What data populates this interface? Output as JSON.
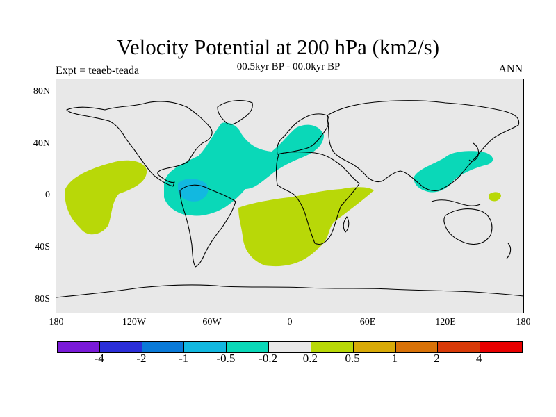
{
  "header": {
    "title": "Velocity Potential at 200 hPa (km2/s)",
    "subtitle": "00.5kyr BP - 00.0kyr BP",
    "expt_label": "Expt = teaeb-teada",
    "period": "ANN"
  },
  "map": {
    "projection": "cylindrical equidistant",
    "lon_range": [
      -180,
      180
    ],
    "lat_range": [
      -90,
      90
    ],
    "background_color": "#e8e8e8",
    "lat_ticks": [
      "80N",
      "40N",
      "0",
      "40S",
      "80S"
    ],
    "lon_ticks": [
      "180",
      "120W",
      "60W",
      "0",
      "60E",
      "120E",
      "180"
    ]
  },
  "colorbar": {
    "colors": [
      "#7a1ad8",
      "#2b2ed8",
      "#0a7ad8",
      "#12b8e0",
      "#0ad8b8",
      "#e8e8e8",
      "#b8d808",
      "#d8aa08",
      "#d87208",
      "#d83a08",
      "#e80000"
    ],
    "labels": [
      "-4",
      "-2",
      "-1",
      "-0.5",
      "-0.2",
      "0.2",
      "0.5",
      "1",
      "2",
      "4"
    ]
  },
  "chart_data": {
    "type": "heatmap",
    "title": "Velocity Potential at 200 hPa (km2/s)",
    "subtitle": "00.5kyr BP - 00.0kyr BP",
    "field_regions": [
      {
        "sign": "negative",
        "range": "-0.5 to -0.2",
        "lon": [
          -100,
          60
        ],
        "lat": [
          -15,
          55
        ],
        "description": "Tropical Americas / North Atlantic / Europe"
      },
      {
        "sign": "negative",
        "range": "-1 to -0.5",
        "lon": [
          -95,
          -65
        ],
        "lat": [
          -5,
          10
        ],
        "description": "Northern South America core"
      },
      {
        "sign": "negative",
        "range": "-0.5 to -0.2",
        "lon": [
          95,
          160
        ],
        "lat": [
          0,
          35
        ],
        "description": "East Asia / Western Pacific"
      },
      {
        "sign": "positive",
        "range": "0.2 to 0.5",
        "lon": [
          -175,
          -115
        ],
        "lat": [
          -30,
          25
        ],
        "description": "Central Pacific"
      },
      {
        "sign": "positive",
        "range": "0.2 to 0.5",
        "lon": [
          -40,
          65
        ],
        "lat": [
          -55,
          5
        ],
        "description": "South Atlantic / Africa"
      },
      {
        "sign": "positive",
        "range": "0.2 to 0.5",
        "lon": [
          150,
          162
        ],
        "lat": [
          -4,
          4
        ],
        "description": "Small western Pacific patch"
      }
    ]
  }
}
